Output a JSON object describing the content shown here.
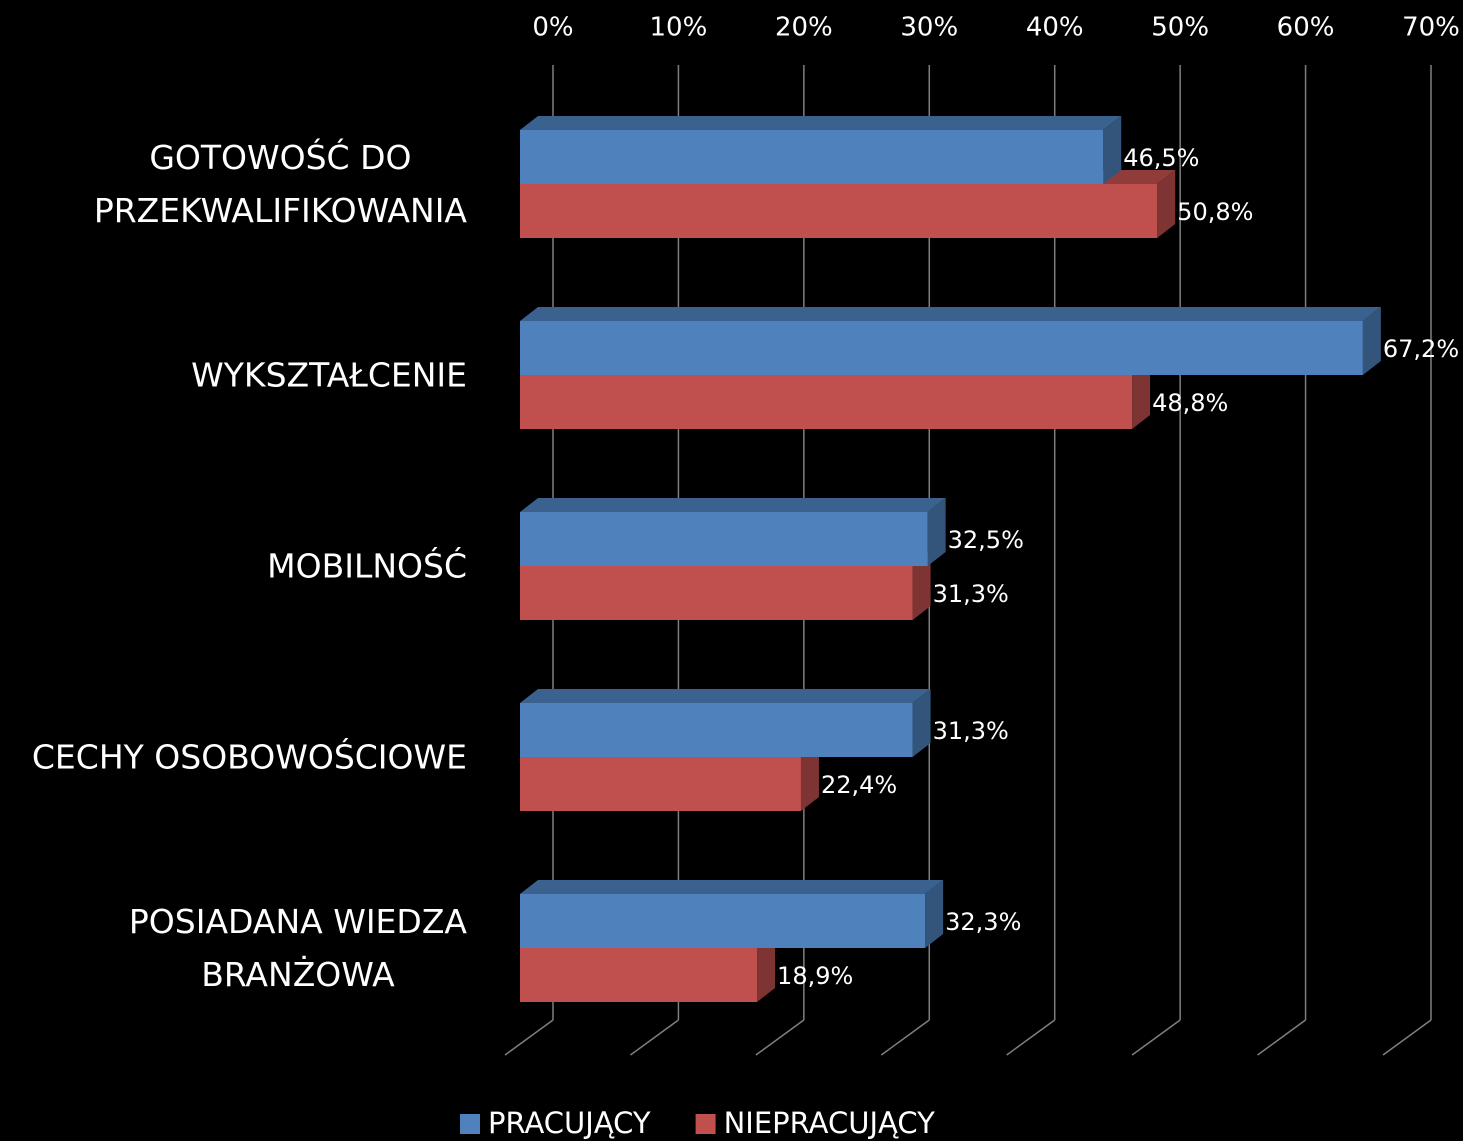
{
  "chart_data": {
    "type": "bar3d_horizontal",
    "categories": [
      "GOTOWOŚĆ DO\nPRZEKWALIFIKOWANIA",
      "WYKSZTAŁCENIE",
      "MOBILNOŚĆ",
      "CECHY OSOBOWOŚCIOWE",
      "POSIADANA WIEDZA\nBRANŻOWA"
    ],
    "series": [
      {
        "name": "PRACUJĄCY",
        "color": "#4f81bd",
        "values": [
          46.5,
          67.2,
          32.5,
          31.3,
          32.3
        ],
        "value_labels": [
          "46,5%",
          "67,2%",
          "32,5%",
          "31,3%",
          "32,3%"
        ]
      },
      {
        "name": "NIEPRACUJĄCY",
        "color": "#c0504d",
        "values": [
          50.8,
          48.8,
          31.3,
          22.4,
          18.9
        ],
        "value_labels": [
          "50,8%",
          "48,8%",
          "31,3%",
          "22,4%",
          "18,9%"
        ]
      }
    ],
    "xlim": [
      0,
      70
    ],
    "xticks": [
      {
        "value": 0,
        "label": "0%"
      },
      {
        "value": 10,
        "label": "10%"
      },
      {
        "value": 20,
        "label": "20%"
      },
      {
        "value": 30,
        "label": "30%"
      },
      {
        "value": 40,
        "label": "40%"
      },
      {
        "value": 50,
        "label": "50%"
      },
      {
        "value": 60,
        "label": "60%"
      },
      {
        "value": 70,
        "label": "70%"
      }
    ],
    "grid": true,
    "legend": "bottom"
  }
}
